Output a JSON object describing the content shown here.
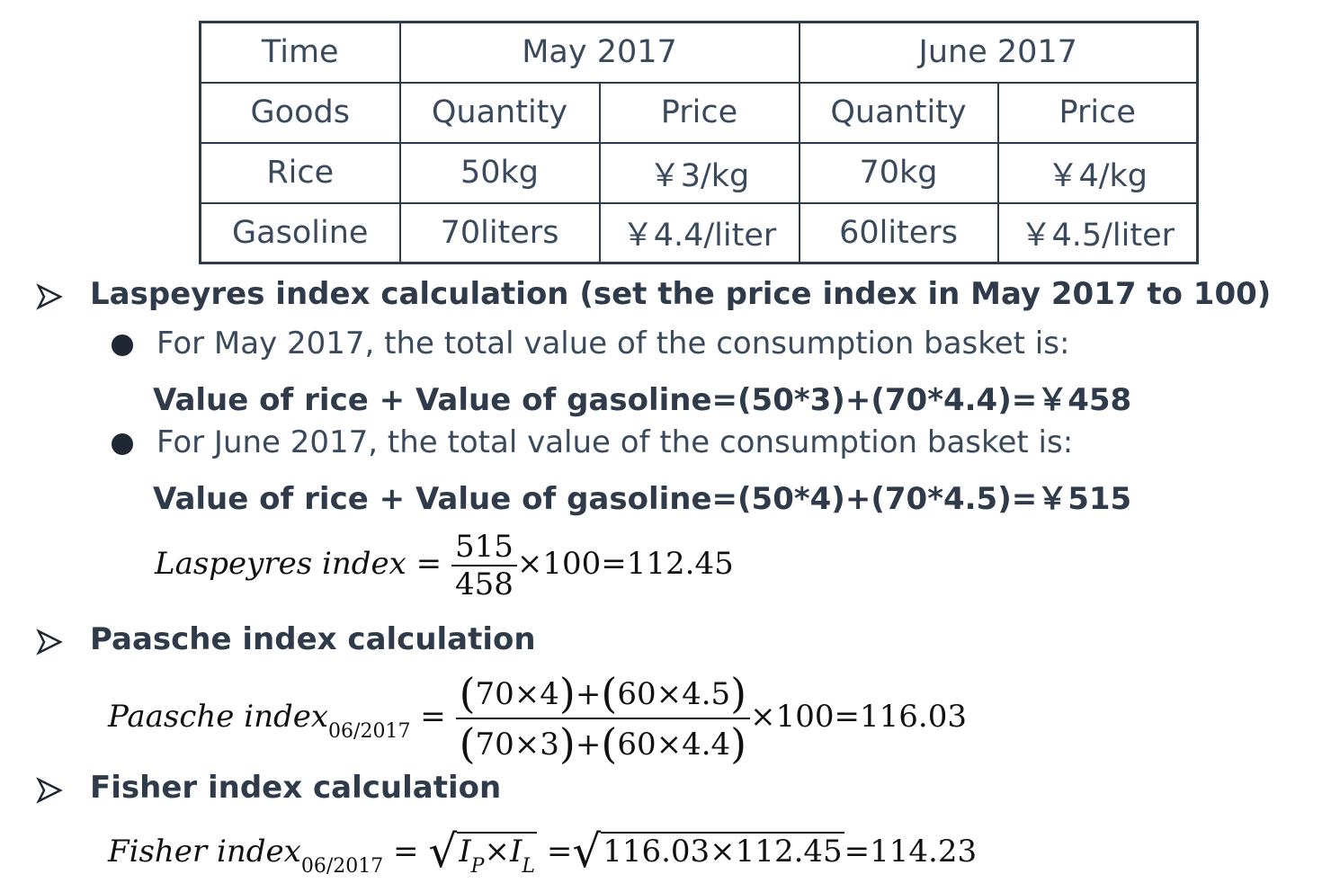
{
  "table": {
    "row_time": {
      "label": "Time",
      "may": "May 2017",
      "june": "June 2017"
    },
    "row_goods": {
      "label": "Goods",
      "may_qty": "Quantity",
      "may_price": "Price",
      "june_qty": "Quantity",
      "june_price": "Price"
    },
    "rows": [
      {
        "good": "Rice",
        "may_qty": "50kg",
        "may_price": "￥3/kg",
        "june_qty": "70kg",
        "june_price": "￥4/kg"
      },
      {
        "good": "Gasoline",
        "may_qty": "70liters",
        "may_price": "￥4.4/liter",
        "june_qty": "60liters",
        "june_price": "￥4.5/liter"
      }
    ]
  },
  "laspeyres": {
    "heading": "Laspeyres index calculation (set the price index in May 2017 to 100)",
    "bullet1": "For May 2017, the total value of the consumption basket is:",
    "bold1": "Value of rice + Value of gasoline=(50*3)+(70*4.4)=￥458",
    "bullet2": "For June 2017, the total value of the consumption basket is:",
    "bold2": "Value of rice + Value of gasoline=(50*4)+(70*4.5)=￥515",
    "formula": {
      "name": "Laspeyres index",
      "numerator": "515",
      "denominator": "458",
      "multiplier": "×100",
      "result": "=112.45"
    }
  },
  "paasche": {
    "heading": "Paasche index calculation",
    "formula": {
      "name": "Paasche index",
      "subscript": "06/2017",
      "num_a": "70×4",
      "num_b": "60×4.5",
      "den_a": "70×3",
      "den_b": "60×4.4",
      "multiplier": "×100",
      "result": "=116.03"
    }
  },
  "fisher": {
    "heading": "Fisher index calculation",
    "formula": {
      "name": "Fisher index",
      "subscript": "06/2017",
      "radicand1_a": "I",
      "radicand1_a_sub": "P",
      "times": "×",
      "radicand1_b": "I",
      "radicand1_b_sub": "L",
      "radicand2": "116.03×112.45",
      "result": "=114.23"
    }
  },
  "colors": {
    "text": "#3a4a5c",
    "heading": "#2f3b4a",
    "border": "#2f3b4a"
  }
}
